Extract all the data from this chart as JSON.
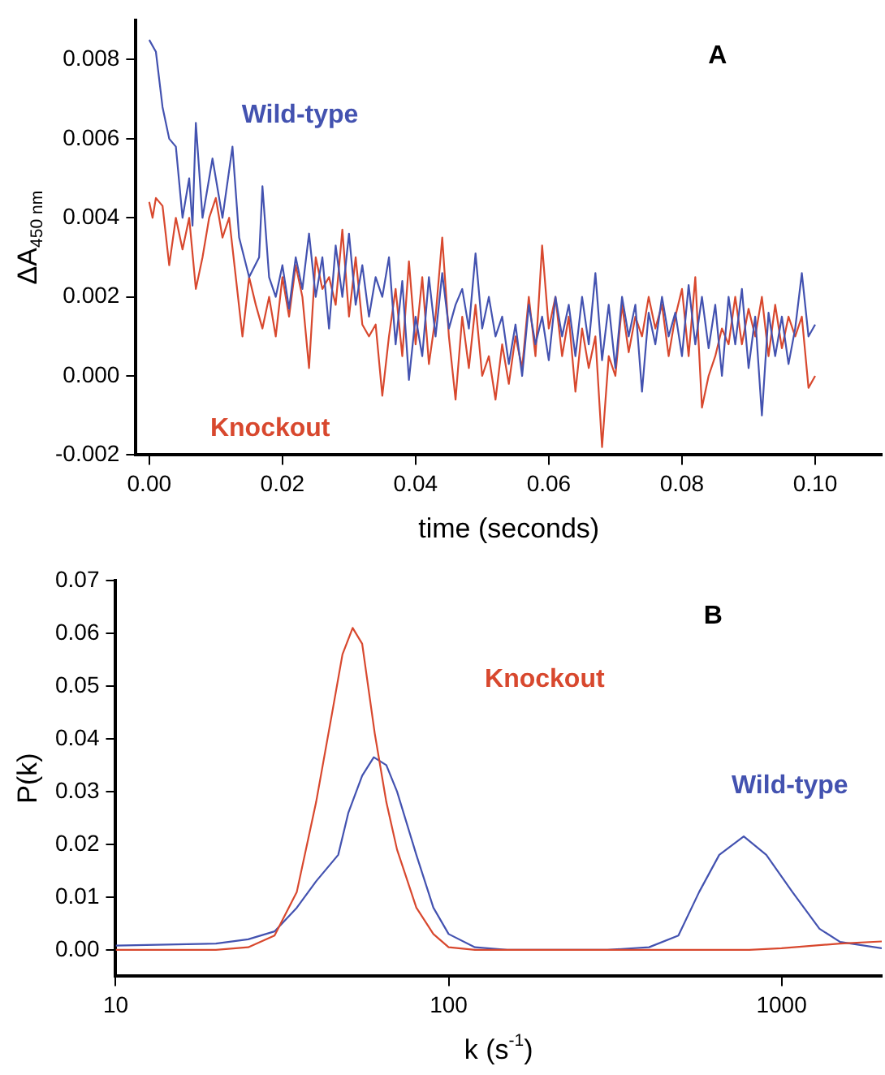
{
  "chart_data": [
    {
      "type": "line",
      "xlabel": "time (seconds)",
      "ylabel": "ΔA$_{450 nm}$",
      "annotations": [
        "A"
      ],
      "grid": false,
      "legend": false,
      "marker": "none",
      "line_style": "solid",
      "xlim": [
        -0.002,
        0.11
      ],
      "xticks": [
        {
          "value": 0,
          "label": "0.00"
        },
        {
          "value": 0.02,
          "label": "0.02"
        },
        {
          "value": 0.04,
          "label": "0.04"
        },
        {
          "value": 0.06,
          "label": "0.06"
        },
        {
          "value": 0.08,
          "label": "0.08"
        },
        {
          "value": 0.1,
          "label": "0.10"
        }
      ],
      "ylim": [
        -0.002,
        0.009
      ],
      "yticks": [
        {
          "value": -0.002,
          "label": "-0.002"
        },
        {
          "value": 0,
          "label": "0.000"
        },
        {
          "value": 0.002,
          "label": "0.002"
        },
        {
          "value": 0.004,
          "label": "0.004"
        },
        {
          "value": 0.006,
          "label": "0.006"
        },
        {
          "value": 0.008,
          "label": "0.008"
        }
      ],
      "series": [
        {
          "name": "Wild-type",
          "color": "#4352b0",
          "x": [
            0,
            0.001,
            0.002,
            0.003,
            0.004,
            0.005,
            0.006,
            0.0065,
            0.007,
            0.008,
            0.0095,
            0.011,
            0.0125,
            0.0135,
            0.015,
            0.0165,
            0.017,
            0.018,
            0.019,
            0.02,
            0.021,
            0.022,
            0.023,
            0.024,
            0.025,
            0.026,
            0.027,
            0.028,
            0.029,
            0.03,
            0.031,
            0.032,
            0.033,
            0.034,
            0.035,
            0.036,
            0.037,
            0.038,
            0.039,
            0.04,
            0.041,
            0.042,
            0.043,
            0.044,
            0.045,
            0.046,
            0.047,
            0.048,
            0.049,
            0.05,
            0.051,
            0.052,
            0.053,
            0.054,
            0.055,
            0.056,
            0.057,
            0.058,
            0.059,
            0.06,
            0.061,
            0.062,
            0.063,
            0.064,
            0.065,
            0.066,
            0.067,
            0.068,
            0.069,
            0.07,
            0.071,
            0.072,
            0.073,
            0.074,
            0.075,
            0.076,
            0.077,
            0.078,
            0.079,
            0.08,
            0.081,
            0.082,
            0.083,
            0.084,
            0.085,
            0.086,
            0.087,
            0.088,
            0.089,
            0.09,
            0.091,
            0.092,
            0.093,
            0.094,
            0.095,
            0.096,
            0.097,
            0.098,
            0.099,
            0.1
          ],
          "values": [
            0.0085,
            0.0082,
            0.0068,
            0.006,
            0.0058,
            0.004,
            0.005,
            0.0038,
            0.0064,
            0.004,
            0.0055,
            0.004,
            0.0058,
            0.0035,
            0.0025,
            0.003,
            0.0048,
            0.0025,
            0.002,
            0.0028,
            0.0017,
            0.003,
            0.0022,
            0.0036,
            0.002,
            0.003,
            0.0012,
            0.0033,
            0.002,
            0.0036,
            0.0018,
            0.0028,
            0.0015,
            0.0025,
            0.002,
            0.003,
            0.0008,
            0.0024,
            -0.0001,
            0.0015,
            0.0005,
            0.0025,
            0.001,
            0.0026,
            0.0012,
            0.0018,
            0.0022,
            0.0012,
            0.0031,
            0.0012,
            0.002,
            0.001,
            0.0015,
            0.0003,
            0.0013,
            0,
            0.0018,
            0.0008,
            0.0015,
            0.0004,
            0.002,
            0.001,
            0.0018,
            0.0005,
            0.002,
            0.0008,
            0.0026,
            0.0004,
            0.0018,
            0.0002,
            0.002,
            0.001,
            0.0018,
            -0.0004,
            0.0016,
            0.0008,
            0.002,
            0.001,
            0.0016,
            0.0005,
            0.0023,
            0.0008,
            0.002,
            0.0007,
            0.0018,
            0,
            0.002,
            0.0008,
            0.0022,
            0.0002,
            0.0015,
            -0.001,
            0.0016,
            0.0005,
            0.0015,
            0.0003,
            0.0012,
            0.0026,
            0.001,
            0.0013
          ]
        },
        {
          "name": "Knockout",
          "color": "#d8482e",
          "x": [
            0,
            0.0005,
            0.001,
            0.002,
            0.003,
            0.004,
            0.005,
            0.006,
            0.007,
            0.008,
            0.009,
            0.01,
            0.011,
            0.012,
            0.013,
            0.014,
            0.015,
            0.016,
            0.017,
            0.018,
            0.019,
            0.02,
            0.021,
            0.022,
            0.023,
            0.024,
            0.025,
            0.026,
            0.027,
            0.028,
            0.029,
            0.03,
            0.031,
            0.032,
            0.033,
            0.034,
            0.035,
            0.036,
            0.037,
            0.038,
            0.039,
            0.04,
            0.041,
            0.042,
            0.043,
            0.044,
            0.045,
            0.046,
            0.047,
            0.048,
            0.049,
            0.05,
            0.051,
            0.052,
            0.053,
            0.054,
            0.055,
            0.056,
            0.057,
            0.058,
            0.059,
            0.06,
            0.061,
            0.062,
            0.063,
            0.064,
            0.065,
            0.066,
            0.067,
            0.068,
            0.069,
            0.07,
            0.071,
            0.072,
            0.073,
            0.074,
            0.075,
            0.076,
            0.077,
            0.078,
            0.079,
            0.08,
            0.081,
            0.082,
            0.083,
            0.084,
            0.085,
            0.086,
            0.087,
            0.088,
            0.089,
            0.09,
            0.091,
            0.092,
            0.093,
            0.094,
            0.095,
            0.096,
            0.097,
            0.098,
            0.099,
            0.1
          ],
          "values": [
            0.0044,
            0.004,
            0.0045,
            0.0043,
            0.0028,
            0.004,
            0.0032,
            0.004,
            0.0022,
            0.003,
            0.004,
            0.0045,
            0.0035,
            0.004,
            0.0025,
            0.001,
            0.0025,
            0.0018,
            0.0012,
            0.002,
            0.001,
            0.0025,
            0.0015,
            0.0028,
            0.002,
            0.0002,
            0.003,
            0.0022,
            0.0025,
            0.0018,
            0.0037,
            0.0015,
            0.003,
            0.0013,
            0.001,
            0.0013,
            -0.0005,
            0.001,
            0.0022,
            0.0005,
            0.0029,
            0.0008,
            0.0025,
            0.0003,
            0.0015,
            0.0035,
            0.001,
            -0.0006,
            0.0015,
            0.0002,
            0.0018,
            0,
            0.0005,
            -0.0006,
            0.0008,
            -0.0002,
            0.001,
            0.0002,
            0.002,
            0.0005,
            0.0033,
            0.0012,
            0.002,
            0.0005,
            0.0015,
            -0.0004,
            0.0012,
            0.0002,
            0.001,
            -0.0018,
            0.0005,
            0,
            0.0018,
            0.0006,
            0.0015,
            0.001,
            0.002,
            0.0012,
            0.0018,
            0.0005,
            0.0015,
            0.0022,
            0.0005,
            0.0025,
            -0.0008,
            0,
            0.0005,
            0.0012,
            0.0008,
            0.002,
            0.0008,
            0.0017,
            0.001,
            0.002,
            0.0005,
            0.0018,
            0.0007,
            0.0015,
            0.001,
            0.0015,
            -0.0003,
            0
          ]
        }
      ]
    },
    {
      "type": "line",
      "xlabel": "k (s$^{-1}$)",
      "ylabel": "P(k)",
      "annotations": [
        "B"
      ],
      "grid": false,
      "legend": false,
      "marker": "none",
      "line_style": "solid",
      "log": "x",
      "xlim": [
        10,
        2000
      ],
      "xticks": [
        10,
        100,
        1000
      ],
      "ylim": [
        -0.005,
        0.07
      ],
      "yticks": [
        {
          "value": 0,
          "label": "0.00"
        },
        0.01,
        0.02,
        0.03,
        0.04,
        0.05,
        0.06,
        0.07
      ],
      "series": [
        {
          "name": "Knockout",
          "color": "#d8482e",
          "x": [
            10,
            20,
            25,
            30,
            35,
            40,
            45,
            48,
            51.5,
            55,
            60,
            65,
            70,
            80,
            90,
            100,
            120,
            500,
            800,
            1000,
            1500,
            2000
          ],
          "values": [
            0,
            0,
            0.0005,
            0.0027,
            0.011,
            0.028,
            0.046,
            0.056,
            0.061,
            0.058,
            0.041,
            0.028,
            0.019,
            0.008,
            0.003,
            0.0005,
            0,
            0,
            0,
            0.0003,
            0.0012,
            0.0016
          ]
        },
        {
          "name": "Wild-type",
          "color": "#4352b0",
          "x": [
            10,
            20,
            25,
            30,
            35,
            40,
            46.6,
            50,
            55,
            59.6,
            65,
            70,
            80,
            90,
            100,
            120,
            150,
            300,
            400,
            490,
            566,
            650,
            770,
            900,
            1077,
            1300,
            1500,
            2000
          ],
          "values": [
            0.0008,
            0.0012,
            0.002,
            0.0035,
            0.008,
            0.013,
            0.018,
            0.026,
            0.033,
            0.0365,
            0.035,
            0.03,
            0.018,
            0.008,
            0.003,
            0.0005,
            0,
            0,
            0.0005,
            0.0027,
            0.011,
            0.018,
            0.0215,
            0.018,
            0.011,
            0.004,
            0.0015,
            0.0003
          ]
        }
      ]
    }
  ]
}
